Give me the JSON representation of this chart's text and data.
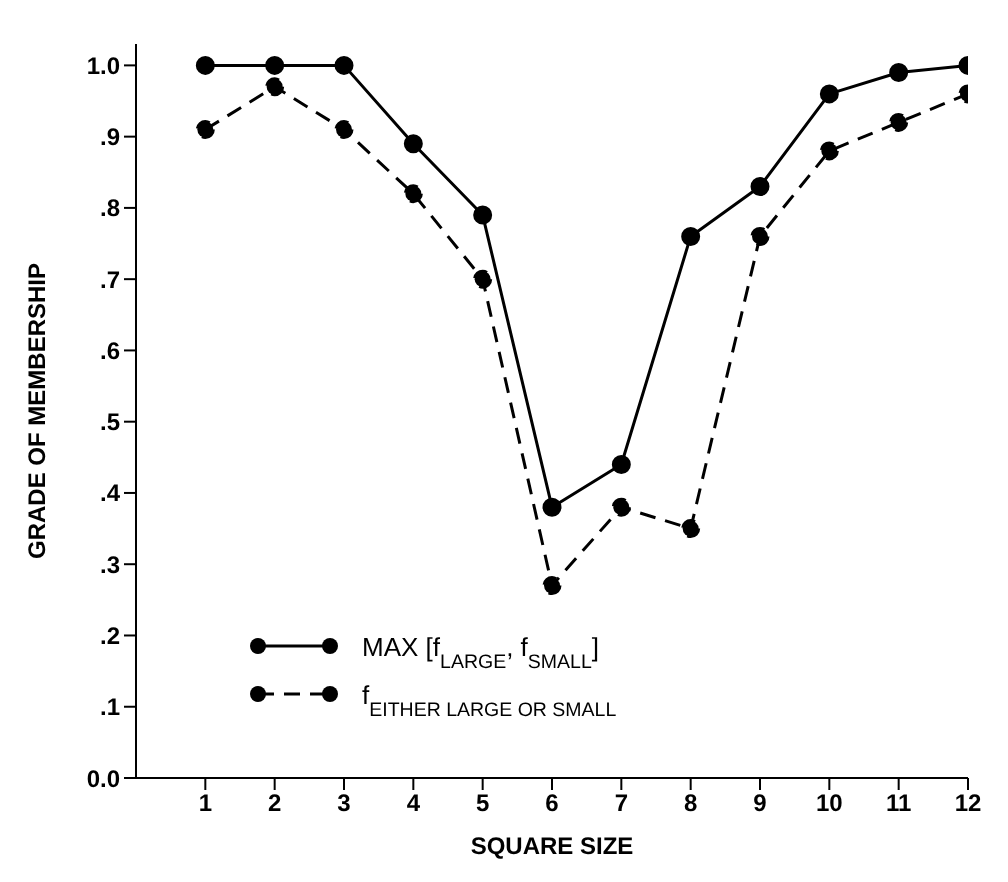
{
  "chart_data": {
    "type": "line",
    "xlabel": "SQUARE SIZE",
    "ylabel": "GRADE OF MEMBERSHIP",
    "x": [
      1,
      2,
      3,
      4,
      5,
      6,
      7,
      8,
      9,
      10,
      11,
      12
    ],
    "series": [
      {
        "name": "MAX [f$_{LARGE}$, f$_{SMALL}$]",
        "color": "#000000",
        "line_style": "solid",
        "values": [
          1.0,
          1.0,
          1.0,
          0.89,
          0.79,
          0.38,
          0.44,
          0.76,
          0.83,
          0.96,
          0.99,
          1.0
        ]
      },
      {
        "name": "f$_{EITHER LARGE OR SMALL}$",
        "color": "#000000",
        "line_style": "dashed",
        "values": [
          0.91,
          0.97,
          0.91,
          0.82,
          0.7,
          0.27,
          0.38,
          0.35,
          0.76,
          0.88,
          0.92,
          0.96
        ]
      }
    ],
    "xlim": [
      0,
      12
    ],
    "xticks": [
      1,
      2,
      3,
      4,
      5,
      6,
      7,
      8,
      9,
      10,
      11,
      12
    ],
    "ylim": [
      0,
      1.03
    ],
    "yticks": [
      {
        "value": 0,
        "label": "0.0"
      },
      {
        "value": 0.1,
        "label": ".1"
      },
      {
        "value": 0.2,
        "label": ".2"
      },
      {
        "value": 0.3,
        "label": ".3"
      },
      {
        "value": 0.4,
        "label": ".4"
      },
      {
        "value": 0.5,
        "label": ".5"
      },
      {
        "value": 0.6,
        "label": ".6"
      },
      {
        "value": 0.7,
        "label": ".7"
      },
      {
        "value": 0.8,
        "label": ".8"
      },
      {
        "value": 0.9,
        "label": ".9"
      },
      {
        "value": 1.0,
        "label": "1.0"
      }
    ],
    "grid": false,
    "legend": "bottom left",
    "marker": "circle"
  }
}
